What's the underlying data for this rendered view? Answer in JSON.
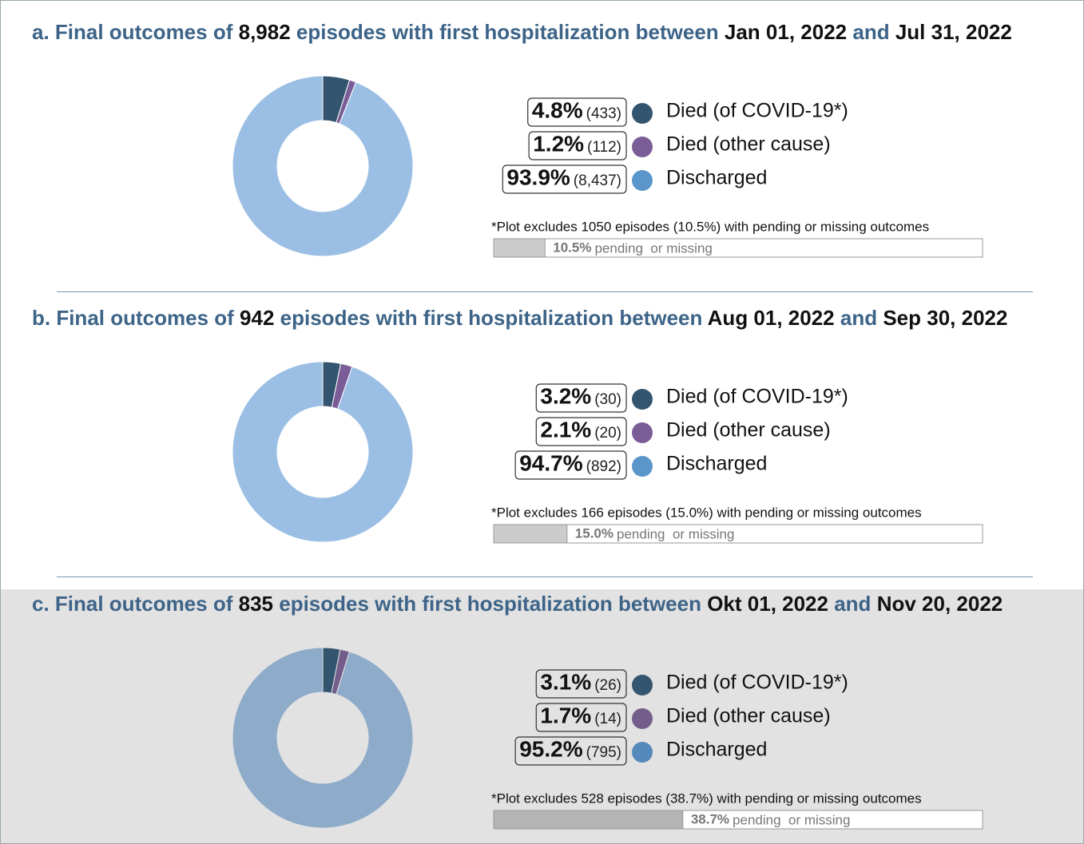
{
  "chart_data": [
    {
      "type": "pie",
      "title": [
        "a. Final outcomes of",
        "8,982",
        "episodes with first hospitalization between",
        "Jan 01, 2022",
        "and",
        "Jul 31, 2022"
      ],
      "categories": [
        "Died (of COVID-19*)",
        "Died (other cause)",
        "Discharged"
      ],
      "values": [
        4.8,
        1.2,
        93.9
      ],
      "value_labels": [
        "4.8%",
        "1.2%",
        "93.9%"
      ],
      "counts": [
        433,
        112,
        8437
      ],
      "count_labels": [
        "(433)",
        "(112)",
        "(8,437)"
      ],
      "colors": [
        "#34556f",
        "#7a5c97",
        "#9bbfe4"
      ],
      "legend_colors": [
        "#34556f",
        "#7a5c97",
        "#5b96cb"
      ],
      "note": "*Plot excludes 1050 episodes (10.5%) with pending or missing outcomes",
      "pending": 10.5,
      "pending_label": "10.5%",
      "pending_text": "pending  or missing",
      "pending_lim": [
        0,
        100
      ],
      "pending_color": "#cccccc",
      "background": "#ffffff"
    },
    {
      "type": "pie",
      "title": [
        "b. Final outcomes of",
        "942",
        "episodes with first hospitalization between",
        "Aug 01, 2022",
        "and",
        "Sep 30, 2022"
      ],
      "categories": [
        "Died (of COVID-19*)",
        "Died (other cause)",
        "Discharged"
      ],
      "values": [
        3.2,
        2.1,
        94.7
      ],
      "value_labels": [
        "3.2%",
        "2.1%",
        "94.7%"
      ],
      "counts": [
        30,
        20,
        892
      ],
      "count_labels": [
        "(30)",
        "(20)",
        "(892)"
      ],
      "colors": [
        "#34556f",
        "#7a5c97",
        "#9bbfe4"
      ],
      "legend_colors": [
        "#34556f",
        "#7a5c97",
        "#5b96cb"
      ],
      "note": "*Plot excludes 166 episodes (15.0%) with pending or missing outcomes",
      "pending": 15.0,
      "pending_label": "15.0%",
      "pending_text": "pending  or missing",
      "pending_lim": [
        0,
        100
      ],
      "pending_color": "#cccccc",
      "background": "#ffffff"
    },
    {
      "type": "pie",
      "title": [
        "c. Final outcomes of",
        "835",
        "episodes with first hospitalization between",
        "Okt 01, 2022",
        "and",
        "Nov 20, 2022"
      ],
      "categories": [
        "Died (of COVID-19*)",
        "Died (other cause)",
        "Discharged"
      ],
      "values": [
        3.1,
        1.7,
        95.2
      ],
      "value_labels": [
        "3.1%",
        "1.7%",
        "95.2%"
      ],
      "counts": [
        26,
        14,
        795
      ],
      "count_labels": [
        "(26)",
        "(14)",
        "(795)"
      ],
      "colors": [
        "#34556f",
        "#735e8b",
        "#8eabc9"
      ],
      "legend_colors": [
        "#34556f",
        "#735e8b",
        "#5588bb"
      ],
      "note": "*Plot excludes 528 episodes (38.7%) with pending or missing outcomes",
      "pending": 38.7,
      "pending_label": "38.7%",
      "pending_text": "pending  or missing",
      "pending_lim": [
        0,
        100
      ],
      "pending_color": "#b4b4b4",
      "background": "#e2e2e2"
    }
  ]
}
